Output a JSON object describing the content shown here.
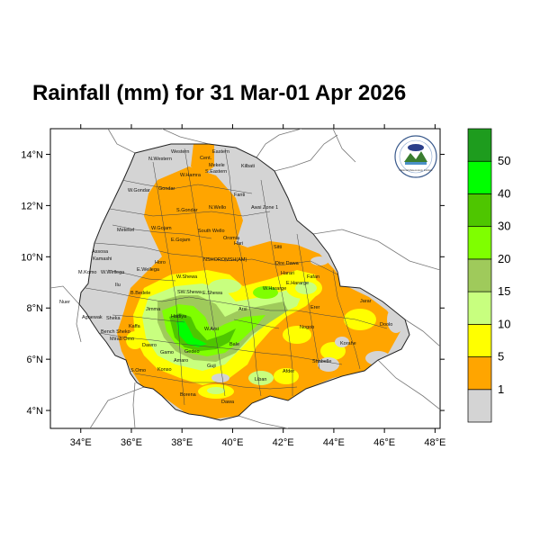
{
  "map": {
    "title": "Rainfall (mm) for 31 Mar-01 Apr 2026",
    "lon_ticks": [
      "34°E",
      "36°E",
      "38°E",
      "40°E",
      "42°E",
      "44°E",
      "46°E",
      "48°E"
    ],
    "lat_ticks": [
      "14°N",
      "12°N",
      "10°N",
      "8°N",
      "6°N",
      "4°N"
    ],
    "extent": {
      "lon": [
        32.8,
        48.2
      ],
      "lat": [
        3.3,
        15.0
      ]
    },
    "regions": [
      "Western",
      "N.Western",
      "Cent.",
      "Eastern",
      "Mekele",
      "Kilbati",
      "S.Eastern",
      "W.Hamra",
      "Gondar",
      "Fanti",
      "W.Gondar",
      "S.Gondar",
      "N.Wello",
      "Awsi Zone 1",
      "Metekel",
      "W.Gojam",
      "E.Gojam",
      "South Wello",
      "Oromia",
      "Hari",
      "Assosa",
      "Kamashi",
      "NSHOROMSH(AM)",
      "Sitti",
      "Dire Dawa",
      "Harari",
      "Fafan",
      "M.Komo",
      "W.Wellega",
      "E.Wellega",
      "Horo",
      "W.Shewa",
      "E.Hararge",
      "W.Hararge",
      "Ilu",
      "Jimma",
      "SW.Shewa",
      "E.Shewa",
      "B.Bedele",
      "Nuer",
      "Agnewak",
      "Erer",
      "Jarar",
      "Sheka",
      "Kaffa",
      "Bench Sheko",
      "Dawro",
      "Hadiya",
      "Arsi",
      "W.Arsi",
      "Doolo",
      "Nogob",
      "Korahe",
      "Mirab Omo",
      "Gamo",
      "Gedeo",
      "Bale",
      "S.Omo",
      "Konso",
      "Amaro",
      "Guji",
      "Liban",
      "Afder",
      "Shabelle",
      "Borena",
      "Dawa"
    ],
    "logo_text": "National Meteorology Institute",
    "legend": {
      "labels": [
        "1",
        "5",
        "10",
        "15",
        "20",
        "30",
        "40",
        "50"
      ],
      "colors": [
        "#d4d4d4",
        "#ffa500",
        "#ffff00",
        "#c8ff7f",
        "#9fca5b",
        "#7fff00",
        "#4ec600",
        "#00ff00",
        "#1e9c1e"
      ]
    }
  }
}
